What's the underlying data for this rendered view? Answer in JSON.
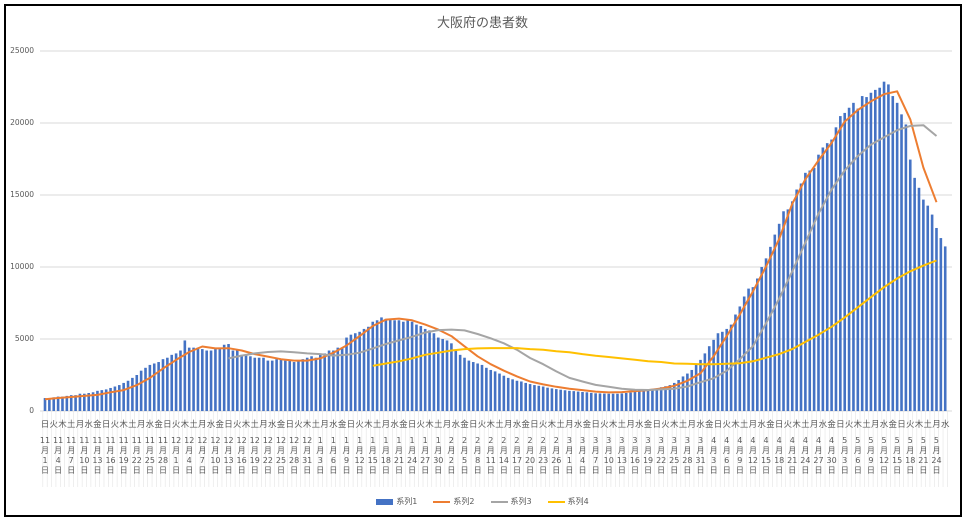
{
  "chart_data": {
    "type": "bar+line",
    "title": "大阪府の患者数",
    "ylim": [
      0,
      25000
    ],
    "y_ticks": [
      "0",
      "5000",
      "10000",
      "15000",
      "20000",
      "25000"
    ],
    "grid": true,
    "legend_placement": "bottom",
    "colors": {
      "系列1": "#4472C4",
      "系列2": "#ED7D31",
      "系列3": "#A5A5A5",
      "系列4": "#FFC000"
    },
    "weekday_tick_labels": [
      "日",
      "火",
      "木",
      "土",
      "月",
      "水",
      "金",
      "日",
      "火",
      "木",
      "土",
      "月",
      "水",
      "金",
      "日",
      "火",
      "木",
      "土",
      "月",
      "水",
      "金",
      "日",
      "火",
      "木",
      "土",
      "月",
      "水",
      "金",
      "日",
      "火",
      "木",
      "土",
      "月",
      "水",
      "金",
      "日",
      "火",
      "木",
      "土",
      "月",
      "水",
      "金",
      "日",
      "火",
      "木",
      "土",
      "月",
      "水",
      "金",
      "日",
      "火",
      "木",
      "土",
      "月",
      "水",
      "金",
      "日",
      "火",
      "木",
      "土",
      "月",
      "水",
      "金",
      "日",
      "火",
      "木",
      "土",
      "月",
      "水",
      "金",
      "日",
      "火",
      "木",
      "土",
      "月",
      "水",
      "金",
      "日",
      "火",
      "木",
      "土",
      "月",
      "水",
      "金",
      "日",
      "火",
      "木",
      "土",
      "月",
      "水",
      "金",
      "日",
      "火",
      "木",
      "土",
      "月",
      "水",
      "金",
      "日",
      "火",
      "木",
      "土",
      "月",
      "水"
    ],
    "date_tick_labels": [
      "11月1日",
      "11月4日",
      "11月7日",
      "11月10日",
      "11月13日",
      "11月16日",
      "11月19日",
      "11月22日",
      "11月25日",
      "11月28日",
      "12月1日",
      "12月4日",
      "12月7日",
      "12月10日",
      "12月13日",
      "12月16日",
      "12月19日",
      "12月22日",
      "12月25日",
      "12月28日",
      "12月31日",
      "1月3日",
      "1月6日",
      "1月9日",
      "1月12日",
      "1月15日",
      "1月18日",
      "1月21日",
      "1月24日",
      "1月27日",
      "1月30日",
      "2月2日",
      "2月5日",
      "2月8日",
      "2月11日",
      "2月14日",
      "2月17日",
      "2月20日",
      "2月23日",
      "2月26日",
      "3月1日",
      "3月4日",
      "3月7日",
      "3月10日",
      "3月13日",
      "3月16日",
      "3月19日",
      "3月22日",
      "3月25日",
      "3月28日",
      "3月31日",
      "4月3日",
      "4月6日",
      "4月9日",
      "4月12日",
      "4月15日",
      "4月18日",
      "4月21日",
      "4月24日",
      "4月27日",
      "4月30日",
      "5月3日",
      "5月6日",
      "5月9日",
      "5月12日",
      "5月15日",
      "5月18日",
      "5月21日",
      "5月24日"
    ],
    "bar_series": {
      "name": "系列1",
      "frequency": "daily",
      "values": [
        900,
        900,
        950,
        1000,
        1000,
        1050,
        1100,
        1100,
        1200,
        1200,
        1250,
        1300,
        1400,
        1450,
        1500,
        1600,
        1700,
        1800,
        1950,
        2100,
        2300,
        2500,
        2800,
        3000,
        3200,
        3300,
        3400,
        3600,
        3700,
        3900,
        4000,
        4200,
        4900,
        4400,
        4400,
        4400,
        4300,
        4200,
        4200,
        4300,
        4300,
        4600,
        4650,
        4200,
        4300,
        3900,
        3900,
        3800,
        3700,
        3700,
        3700,
        3500,
        3500,
        3600,
        3600,
        3500,
        3500,
        3400,
        3500,
        3600,
        3700,
        3800,
        3700,
        3900,
        4000,
        4200,
        4200,
        4400,
        4400,
        5100,
        5300,
        5400,
        5500,
        5700,
        5850,
        6200,
        6300,
        6500,
        6400,
        6400,
        6300,
        6300,
        6200,
        6300,
        6200,
        6000,
        5900,
        5700,
        5600,
        5400,
        5100,
        5000,
        4900,
        4700,
        4200,
        3900,
        3700,
        3500,
        3400,
        3300,
        3200,
        3000,
        2850,
        2750,
        2600,
        2450,
        2300,
        2200,
        2100,
        2050,
        1950,
        1870,
        1800,
        1750,
        1700,
        1620,
        1570,
        1520,
        1480,
        1440,
        1400,
        1380,
        1350,
        1320,
        1300,
        1260,
        1230,
        1220,
        1210,
        1200,
        1200,
        1200,
        1220,
        1250,
        1280,
        1320,
        1350,
        1380,
        1420,
        1480,
        1550,
        1650,
        1720,
        1800,
        1950,
        2150,
        2400,
        2600,
        2850,
        3200,
        3550,
        4000,
        4500,
        4940,
        5400,
        5500,
        5700,
        6000,
        6700,
        7260,
        7950,
        8500,
        8600,
        9200,
        10000,
        10600,
        11400,
        12250,
        13000,
        13870,
        14000,
        14560,
        15380,
        15800,
        16540,
        16700,
        16880,
        17800,
        18300,
        18600,
        18850,
        19700,
        20480,
        20700,
        21060,
        21400,
        21000,
        21870,
        21800,
        22100,
        22300,
        22450,
        22870,
        22680,
        21870,
        21400,
        20600,
        19900,
        17460,
        16190,
        15500,
        14680,
        14260,
        13640,
        12710,
        12010,
        11430
      ]
    },
    "line_series": [
      {
        "name": "系列2",
        "sampled_at": "date_tick_labels",
        "values": [
          810,
          900,
          970,
          1050,
          1120,
          1300,
          1450,
          1800,
          2300,
          2950,
          3550,
          4100,
          4480,
          4350,
          4360,
          4200,
          3950,
          3780,
          3600,
          3500,
          3500,
          3650,
          4050,
          4550,
          5200,
          5900,
          6350,
          6420,
          6300,
          6000,
          5650,
          5200,
          4490,
          3800,
          3250,
          2800,
          2400,
          2050,
          1850,
          1680,
          1550,
          1450,
          1350,
          1290,
          1310,
          1380,
          1450,
          1560,
          1750,
          2100,
          2620,
          3800,
          5200,
          6700,
          8300,
          10040,
          11950,
          14400,
          16100,
          17400,
          18620,
          20100,
          20900,
          21500,
          22000,
          22200,
          20250,
          16900,
          14500
        ]
      },
      {
        "name": "系列3",
        "sampled_at": "date_tick_labels",
        "values": [
          null,
          null,
          null,
          null,
          null,
          null,
          null,
          null,
          null,
          null,
          null,
          null,
          null,
          null,
          3650,
          3850,
          4000,
          4100,
          4140,
          4080,
          4000,
          3950,
          3850,
          3900,
          4050,
          4350,
          4650,
          4900,
          5150,
          5450,
          5620,
          5650,
          5600,
          5350,
          5050,
          4700,
          4250,
          3680,
          3250,
          2750,
          2300,
          2050,
          1810,
          1680,
          1550,
          1470,
          1460,
          1500,
          1550,
          1700,
          2000,
          2270,
          2800,
          3600,
          4500,
          6100,
          7800,
          9700,
          11700,
          13700,
          15380,
          16700,
          17700,
          18500,
          19000,
          19500,
          19800,
          19850,
          19100
        ]
      },
      {
        "name": "系列4",
        "sampled_at": "date_tick_labels",
        "values": [
          null,
          null,
          null,
          null,
          null,
          null,
          null,
          null,
          null,
          null,
          null,
          null,
          null,
          null,
          null,
          null,
          null,
          null,
          null,
          null,
          null,
          null,
          null,
          null,
          null,
          3140,
          3300,
          3450,
          3650,
          3900,
          4050,
          4200,
          4300,
          4350,
          4370,
          4370,
          4370,
          4300,
          4250,
          4150,
          4080,
          3950,
          3840,
          3750,
          3650,
          3560,
          3450,
          3400,
          3300,
          3280,
          3250,
          3250,
          3280,
          3320,
          3450,
          3700,
          3950,
          4300,
          4800,
          5300,
          5850,
          6500,
          7200,
          7900,
          8600,
          9200,
          9700,
          10100,
          10450
        ]
      }
    ],
    "legend": [
      "系列1",
      "系列2",
      "系列3",
      "系列4"
    ]
  }
}
